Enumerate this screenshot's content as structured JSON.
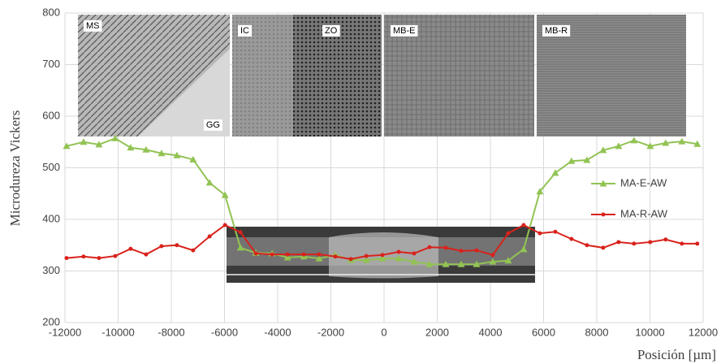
{
  "chart_data": {
    "type": "line",
    "y_label": "Microdureza Vickers",
    "x_label": "Posición [µm]",
    "x": [
      -11940,
      -11300,
      -10720,
      -10110,
      -9530,
      -8950,
      -8370,
      -7790,
      -7180,
      -6560,
      -5980,
      -5400,
      -4820,
      -4210,
      -3630,
      -3020,
      -2440,
      -1830,
      -1250,
      -670,
      -60,
      550,
      1130,
      1710,
      2320,
      2900,
      3480,
      4090,
      4670,
      5250,
      5860,
      6440,
      7050,
      7630,
      8240,
      8820,
      9400,
      10010,
      10590,
      11200,
      11780
    ],
    "series": [
      {
        "name": "MA-E-AW",
        "color": "#92c353",
        "marker": "triangle",
        "values": [
          542,
          550,
          545,
          557,
          539,
          535,
          528,
          524,
          516,
          471,
          447,
          345,
          335,
          334,
          326,
          328,
          324,
          331,
          321,
          321,
          324,
          324,
          318,
          313,
          313,
          313,
          313,
          318,
          320,
          342,
          454,
          490,
          513,
          515,
          534,
          542,
          553,
          542,
          548,
          551,
          546
        ]
      },
      {
        "name": "MA-R-AW",
        "color": "#d9221c",
        "marker": "circle",
        "values": [
          325,
          328,
          325,
          329,
          343,
          332,
          348,
          350,
          340,
          367,
          389,
          375,
          334,
          332,
          332,
          332,
          332,
          328,
          323,
          329,
          331,
          337,
          334,
          346,
          345,
          339,
          340,
          331,
          373,
          389,
          373,
          376,
          362,
          350,
          345,
          356,
          353,
          356,
          361,
          353,
          353
        ]
      }
    ],
    "xlim": [
      -12000,
      12000
    ],
    "xticks": [
      -12000,
      -10000,
      -8000,
      -6000,
      -4000,
      -2000,
      0,
      2000,
      4000,
      6000,
      8000,
      10000,
      12000
    ],
    "ylim": [
      200,
      800
    ],
    "yticks": [
      200,
      300,
      400,
      500,
      600,
      700,
      800
    ],
    "grid": true,
    "legend": "right",
    "annotations": [
      "MS",
      "GG",
      "IC",
      "ZO",
      "MB-E",
      "MB-R"
    ]
  }
}
